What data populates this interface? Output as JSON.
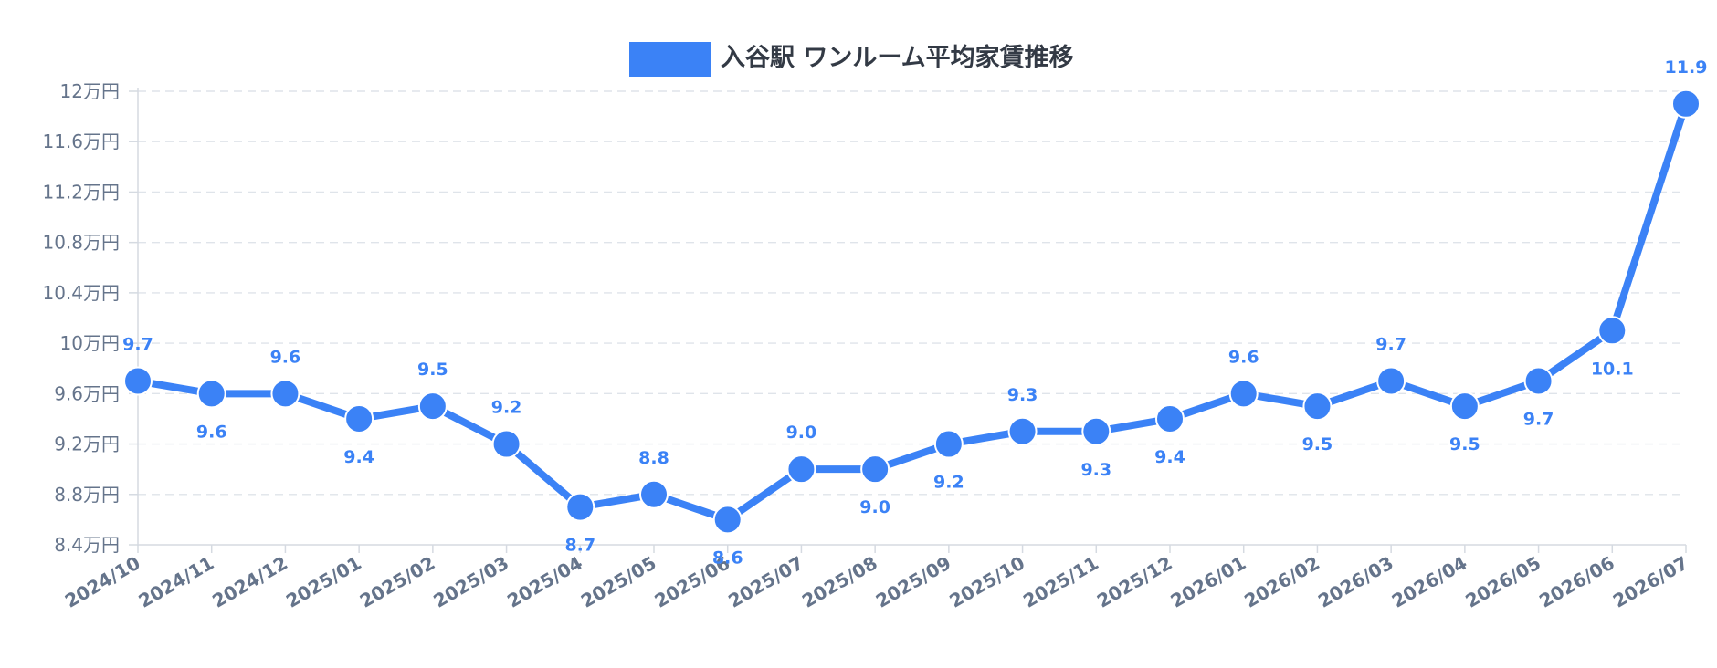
{
  "chart_data": {
    "type": "line",
    "legend": {
      "position": "top-center"
    },
    "series": [
      {
        "name": "入谷駅 ワンルーム平均家賃推移",
        "color": "#3b82f6",
        "values": [
          9.7,
          9.6,
          9.6,
          9.4,
          9.5,
          9.2,
          8.7,
          8.8,
          8.6,
          9.0,
          9.0,
          9.2,
          9.3,
          9.3,
          9.4,
          9.6,
          9.5,
          9.7,
          9.5,
          9.7,
          10.1,
          11.9
        ],
        "data_labels": [
          "9.7",
          "9.6",
          "9.6",
          "9.4",
          "9.5",
          "9.2",
          "8.7",
          "8.8",
          "8.6",
          "9.0",
          "9.0",
          "9.2",
          "9.3",
          "9.3",
          "9.4",
          "9.6",
          "9.5",
          "9.7",
          "9.5",
          "9.7",
          "10.1",
          "11.9"
        ]
      }
    ],
    "categories": [
      "2024/10",
      "2024/11",
      "2024/12",
      "2025/01",
      "2025/02",
      "2025/03",
      "2025/04",
      "2025/05",
      "2025/06",
      "2025/07",
      "2025/08",
      "2025/09",
      "2025/10",
      "2025/11",
      "2025/12",
      "2026/01",
      "2026/02",
      "2026/03",
      "2026/04",
      "2026/05",
      "2026/06",
      "2026/07"
    ],
    "ylim": [
      8.4,
      12
    ],
    "yticks": [
      8.4,
      8.8,
      9.2,
      9.6,
      10,
      10.4,
      10.8,
      11.2,
      11.6,
      12
    ],
    "ytick_labels": [
      "8.4万円",
      "8.8万円",
      "9.2万円",
      "9.6万円",
      "10万円",
      "10.4万円",
      "10.8万円",
      "11.2万円",
      "11.6万円",
      "12万円"
    ],
    "grid": true
  }
}
